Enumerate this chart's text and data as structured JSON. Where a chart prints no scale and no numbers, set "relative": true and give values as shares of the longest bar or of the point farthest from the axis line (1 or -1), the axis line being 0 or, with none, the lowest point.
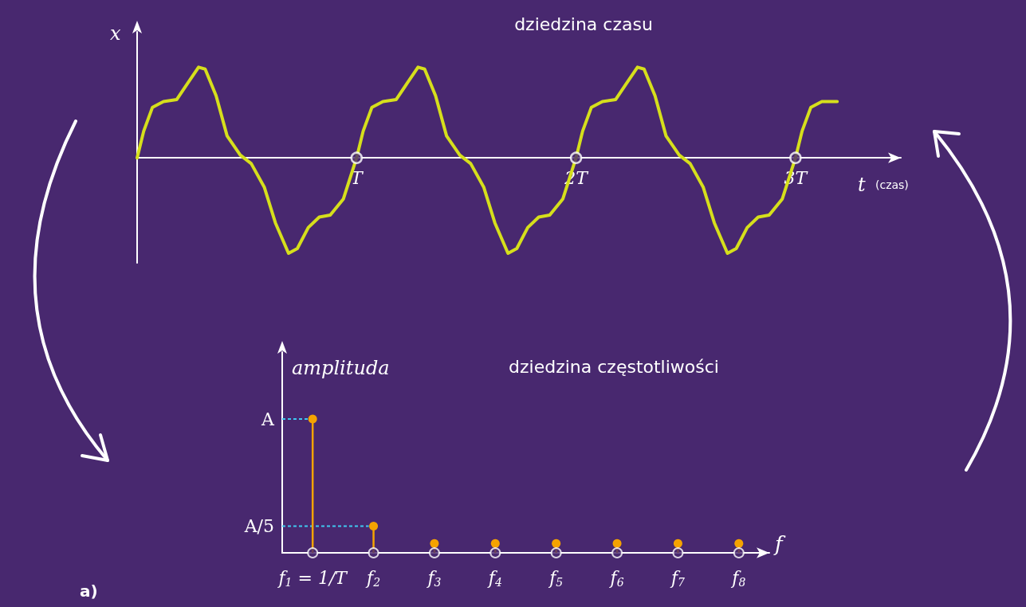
{
  "chart_data": [
    {
      "type": "line",
      "title": "dziedzina czasu",
      "xlabel": "t (czas)",
      "ylabel": "x",
      "relative": true,
      "xlim": [
        0,
        3.48
      ],
      "xticks": [
        {
          "value": 1,
          "label": "T"
        },
        {
          "value": 2,
          "label": "2T"
        },
        {
          "value": 3,
          "label": "3T"
        }
      ],
      "series": [
        {
          "type": "line",
          "color": "#d6df1c",
          "x": [
            0,
            0.03,
            0.07,
            0.12,
            0.18,
            0.23,
            0.28,
            0.31,
            0.36,
            0.41,
            0.47,
            0.52,
            0.58,
            0.63,
            0.69,
            0.73,
            0.78,
            0.83,
            0.88,
            0.94,
            1,
            1.03,
            1.07,
            1.12,
            1.18,
            1.23,
            1.28,
            1.31,
            1.36,
            1.41,
            1.47,
            1.52,
            1.58,
            1.63,
            1.69,
            1.73,
            1.78,
            1.83,
            1.88,
            1.94,
            2,
            2.03,
            2.07,
            2.12,
            2.18,
            2.23,
            2.28,
            2.31,
            2.36,
            2.41,
            2.47,
            2.52,
            2.58,
            2.63,
            2.69,
            2.73,
            2.78,
            2.83,
            2.88,
            2.94,
            3,
            3.03,
            3.07,
            3.12,
            3.19
          ],
          "values": [
            0,
            0.28,
            0.53,
            0.59,
            0.61,
            0.78,
            0.95,
            0.93,
            0.65,
            0.23,
            0.03,
            -0.06,
            -0.31,
            -0.68,
            -1,
            -0.95,
            -0.73,
            -0.62,
            -0.6,
            -0.43,
            0,
            0.28,
            0.53,
            0.59,
            0.61,
            0.78,
            0.95,
            0.93,
            0.65,
            0.23,
            0.03,
            -0.06,
            -0.31,
            -0.68,
            -1,
            -0.95,
            -0.73,
            -0.62,
            -0.6,
            -0.43,
            0,
            0.28,
            0.53,
            0.59,
            0.61,
            0.78,
            0.95,
            0.93,
            0.65,
            0.23,
            0.03,
            -0.06,
            -0.31,
            -0.68,
            -1,
            -0.95,
            -0.73,
            -0.62,
            -0.6,
            -0.43,
            0,
            0.28,
            0.53,
            0.59,
            0.59
          ]
        },
        {
          "type": "scatter",
          "color": "#ffffff",
          "x": [
            1,
            2,
            3
          ],
          "values": [
            0,
            0,
            0
          ]
        }
      ]
    },
    {
      "type": "lollipop",
      "title": "dziedzina częstotliwości",
      "xlabel": "f",
      "ylabel": "amplituda",
      "relative": true,
      "categories": [
        "f$_{1}$ = 1/T",
        "f$_{2}$",
        "f$_{3}$",
        "f$_{4}$",
        "f$_{5}$",
        "f$_{6}$",
        "f$_{7}$",
        "f$_{8}$"
      ],
      "series": [
        {
          "type": "lollipop",
          "color": "#f5a300",
          "values": [
            1,
            0.2,
            0.07,
            0.07,
            0.07,
            0.07,
            0.07,
            0.07
          ]
        },
        {
          "type": "scatter",
          "color": "#ffffff",
          "x": [
            "f$_{1}$ = 1/T",
            "f$_{2}$",
            "f$_{3}$",
            "f$_{4}$",
            "f$_{5}$",
            "f$_{6}$",
            "f$_{7}$",
            "f$_{8}$"
          ],
          "values": [
            0,
            0,
            0,
            0,
            0,
            0,
            0,
            0
          ]
        }
      ],
      "ref_lines": [
        {
          "axis": "y",
          "value": 1,
          "label": "A",
          "color": "#3ec8f0",
          "line_style": "dashed"
        },
        {
          "axis": "y",
          "value": 0.2,
          "label": "A/5",
          "color": "#3ec8f0",
          "line_style": "dashed"
        }
      ],
      "annotations": [
        "a)"
      ]
    }
  ]
}
